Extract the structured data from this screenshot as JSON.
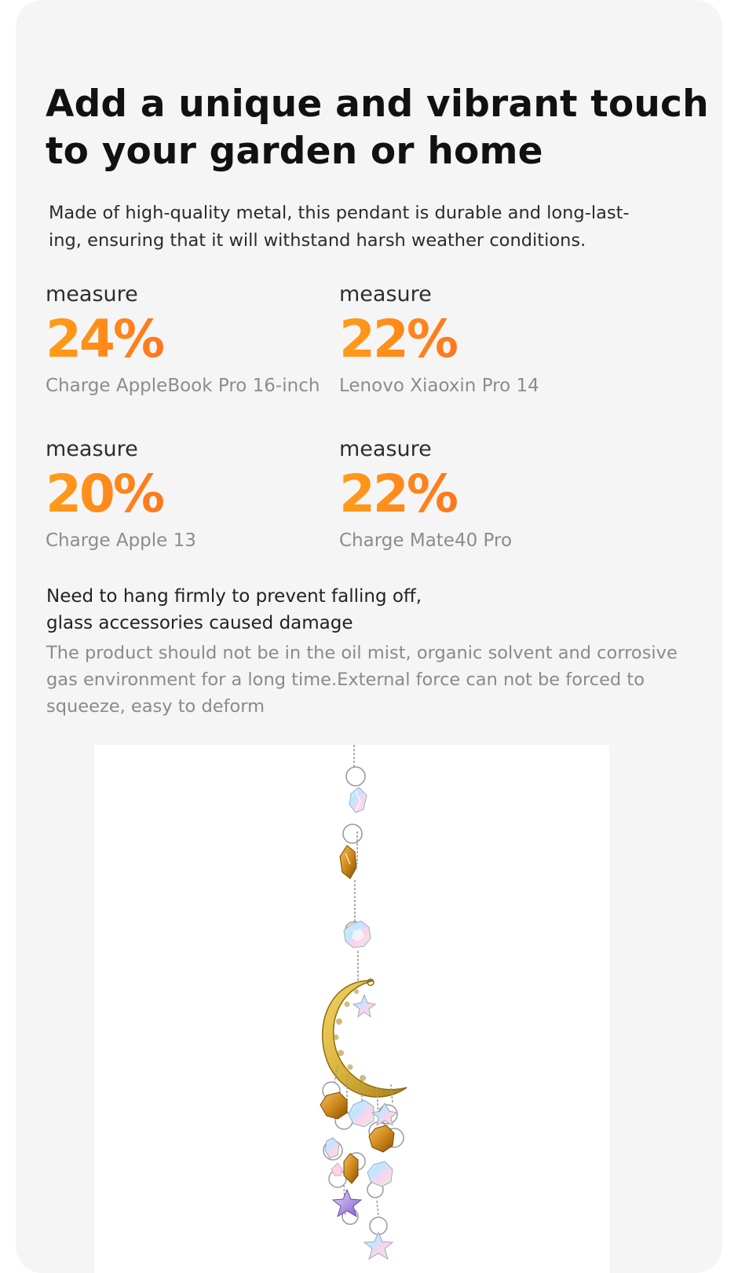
{
  "headline": "Add a unique and vibrant touch\n to your garden or home",
  "intro": "Made of high-quality metal, this pendant is durable and long-last-\ning, ensuring that it will withstand harsh weather conditions.",
  "stats": [
    {
      "label": "measure",
      "value": "24%",
      "device": "Charge AppleBook Pro 16-inch"
    },
    {
      "label": "measure",
      "value": "22%",
      "device": "Lenovo Xiaoxin Pro 14"
    },
    {
      "label": "measure",
      "value": "20%",
      "device": "Charge Apple 13"
    },
    {
      "label": "measure",
      "value": "22%",
      "device": "Charge Mate40 Pro"
    }
  ],
  "warning": "Need to hang firmly to prevent falling off,\nglass accessories caused damage",
  "note": "The product should not be in the oil mist, organic solvent and corrosive\n gas environment for a long time.External force can not be forced to\nsqueeze, easy to deform",
  "colors": {
    "card_background": "#f5f5f5",
    "stat_gradient_start": "#ff9d18",
    "stat_gradient_end": "#f0402e",
    "moon_gold": "#d9b43a",
    "amber_crystal": "#d08a1c"
  },
  "image": {
    "subject": "crescent-moon-crystal-suncatcher"
  }
}
